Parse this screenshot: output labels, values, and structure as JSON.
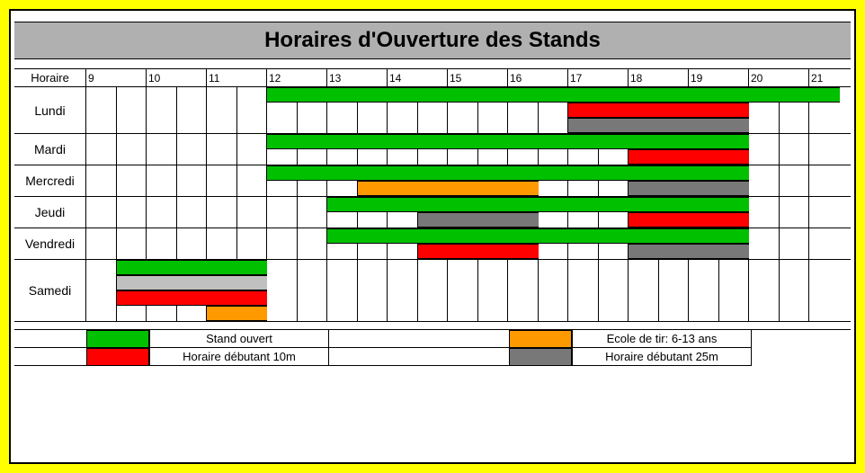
{
  "title": "Horaires d'Ouverture des Stands",
  "header_label": "Horaire",
  "time_axis": {
    "start": 9,
    "end": 21,
    "half_cell_width": 33.5
  },
  "colors": {
    "green": "#00c000",
    "red": "#ff0000",
    "orange": "#ff9900",
    "grey": "#787878",
    "light_grey": "#c0c0c0",
    "yellow": "#ffff00",
    "black": "#000000",
    "white": "#ffffff"
  },
  "days": [
    {
      "name": "Lundi",
      "tracks": [
        [
          {
            "start": 12,
            "end": 21.5,
            "color": "green"
          }
        ],
        [
          {
            "start": 17,
            "end": 20,
            "color": "red"
          }
        ],
        [
          {
            "start": 17,
            "end": 20,
            "color": "grey"
          }
        ]
      ]
    },
    {
      "name": "Mardi",
      "tracks": [
        [
          {
            "start": 12,
            "end": 20,
            "color": "green"
          }
        ],
        [
          {
            "start": 18,
            "end": 20,
            "color": "red"
          }
        ]
      ]
    },
    {
      "name": "Mercredi",
      "tracks": [
        [
          {
            "start": 12,
            "end": 20,
            "color": "green"
          }
        ],
        [
          {
            "start": 13.5,
            "end": 16.5,
            "color": "orange"
          },
          {
            "start": 18,
            "end": 20,
            "color": "grey"
          }
        ]
      ]
    },
    {
      "name": "Jeudi",
      "tracks": [
        [
          {
            "start": 13,
            "end": 20,
            "color": "green"
          }
        ],
        [
          {
            "start": 14.5,
            "end": 16.5,
            "color": "grey"
          },
          {
            "start": 18,
            "end": 20,
            "color": "red"
          }
        ]
      ]
    },
    {
      "name": "Vendredi",
      "tracks": [
        [
          {
            "start": 13,
            "end": 20,
            "color": "green"
          }
        ],
        [
          {
            "start": 14.5,
            "end": 16.5,
            "color": "red"
          },
          {
            "start": 18,
            "end": 20,
            "color": "grey"
          }
        ]
      ]
    },
    {
      "name": "Samedi",
      "tracks": [
        [
          {
            "start": 9.5,
            "end": 12,
            "color": "green"
          }
        ],
        [
          {
            "start": 9.5,
            "end": 12,
            "color": "light_grey"
          }
        ],
        [
          {
            "start": 9.5,
            "end": 12,
            "color": "red"
          }
        ],
        [
          {
            "start": 11,
            "end": 12,
            "color": "orange"
          }
        ]
      ]
    }
  ],
  "legend": [
    {
      "swatch": "green",
      "label": "Stand ouvert",
      "swatch2": "orange",
      "label2": "Ecole de tir: 6-13 ans"
    },
    {
      "swatch": "red",
      "label": "Horaire débutant 10m",
      "swatch2": "grey",
      "label2": "Horaire débutant 25m"
    }
  ]
}
